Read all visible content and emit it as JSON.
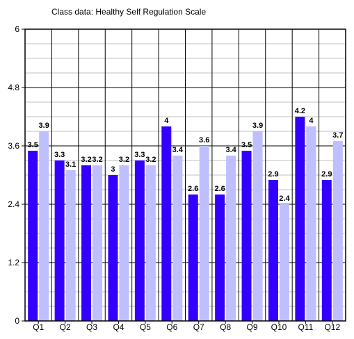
{
  "chart_data": {
    "type": "bar",
    "title": "Class data: Healthy Self Regulation Scale",
    "xlabel": "",
    "ylabel": "",
    "categories": [
      "Q1",
      "Q2",
      "Q3",
      "Q4",
      "Q5",
      "Q6",
      "Q7",
      "Q8",
      "Q9",
      "Q10",
      "Q11",
      "Q12"
    ],
    "series": [
      {
        "color": "#3300ff",
        "values": [
          3.5,
          3.3,
          3.2,
          3,
          3.3,
          4,
          2.6,
          2.6,
          3.5,
          2.9,
          4.2,
          2.9
        ]
      },
      {
        "color": "#bfbfff",
        "values": [
          3.9,
          3.1,
          3.2,
          3.2,
          3.2,
          3.4,
          3.6,
          3.4,
          3.9,
          2.4,
          4,
          3.7
        ]
      }
    ],
    "ylim": [
      0,
      6
    ],
    "yticks": [
      "0",
      "1.2",
      "2.4",
      "3.6",
      "4.8",
      "6"
    ],
    "grid": true,
    "legend": "none",
    "grid_color": "#000000",
    "minor_grid_color": "#c0c0c0"
  }
}
